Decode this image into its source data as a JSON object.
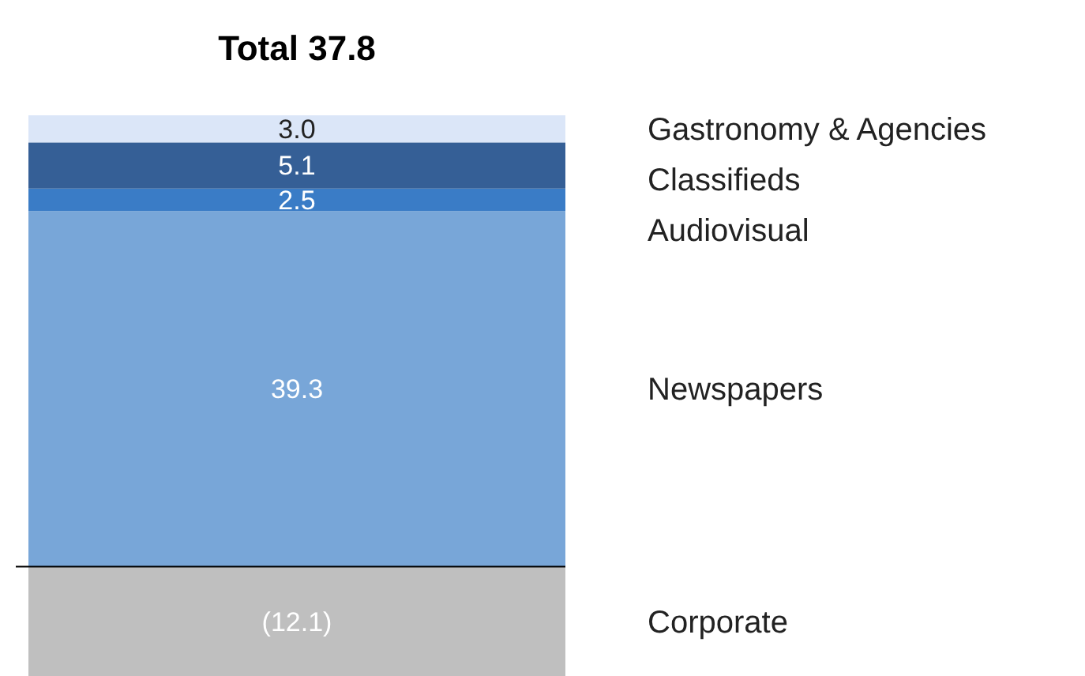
{
  "chart_data": {
    "type": "bar",
    "title": "Total 37.8",
    "stacked": true,
    "ylim": [
      -12.1,
      49.9
    ],
    "categories": [
      null
    ],
    "series": [
      {
        "name": "Corporate",
        "color": "#bfbfbf",
        "values": [
          -12.1
        ],
        "value_labels": [
          "(12.1)"
        ]
      },
      {
        "name": "Newspapers",
        "color": "#78a6d8",
        "values": [
          39.3
        ],
        "value_labels": [
          "39.3"
        ]
      },
      {
        "name": "Audiovisual",
        "color": "#3a7cc6",
        "values": [
          2.5
        ],
        "value_labels": [
          "2.5"
        ]
      },
      {
        "name": "Classifieds",
        "color": "#355f96",
        "values": [
          5.1
        ],
        "value_labels": [
          "5.1"
        ]
      },
      {
        "name": "Gastronomy & Agencies",
        "color": "#dbe6f8",
        "values": [
          3.0
        ],
        "value_labels": [
          "3.0"
        ]
      }
    ]
  }
}
